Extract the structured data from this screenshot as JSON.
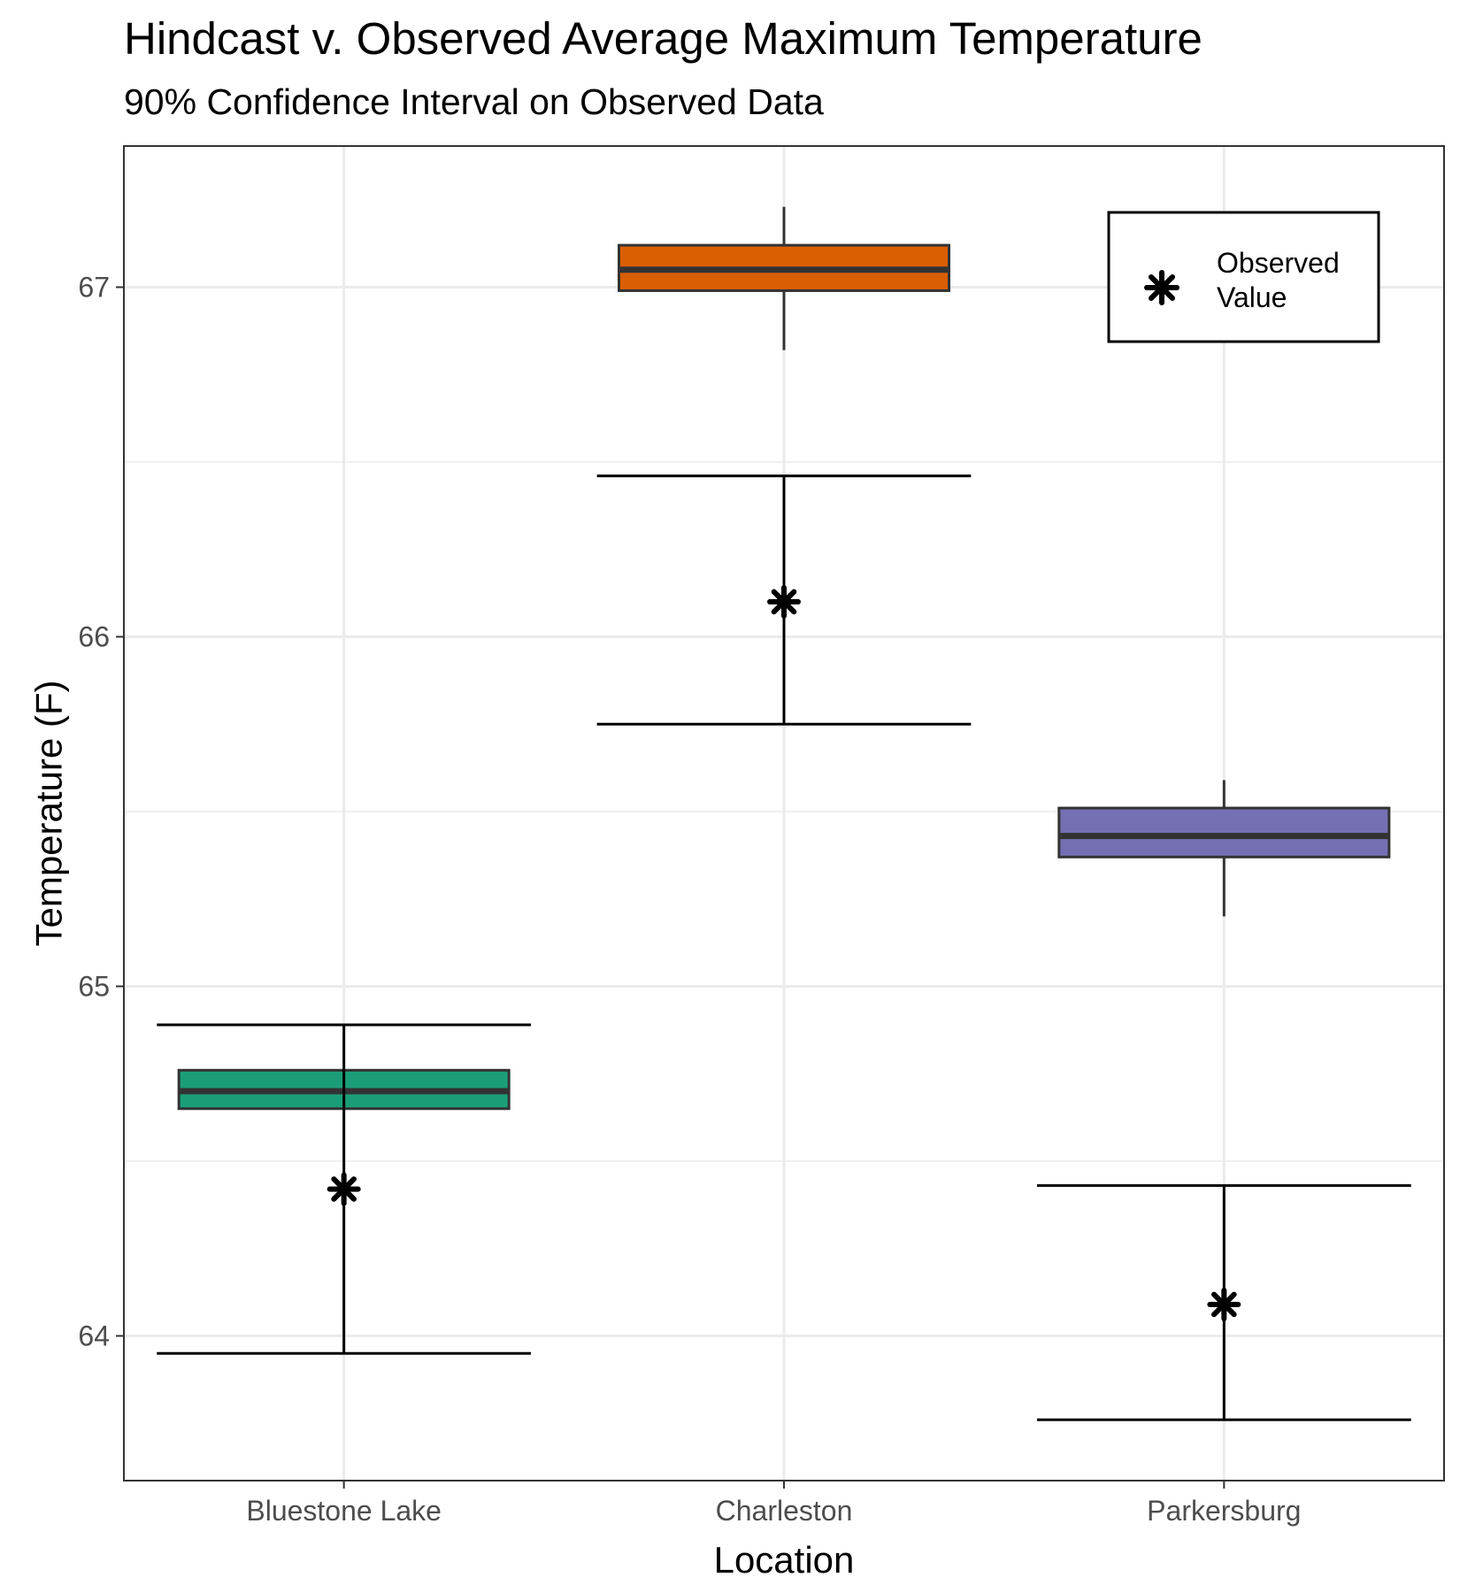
{
  "chart_data": {
    "type": "boxplot",
    "title": "Hindcast v. Observed Average Maximum Temperature",
    "subtitle": "90% Confidence Interval on Observed Data",
    "xlabel": "Location",
    "ylabel": "Temperature (F)",
    "categories": [
      "Bluestone Lake",
      "Charleston",
      "Parkersburg"
    ],
    "ylim": [
      63.6,
      67.4
    ],
    "yticks": [
      64,
      65,
      66,
      67
    ],
    "ytick_labels": [
      "64",
      "65",
      "66",
      "67"
    ],
    "grid": true,
    "box_colors": [
      "#1b9e77",
      "#d95f02",
      "#7570b3"
    ],
    "boxes": [
      {
        "category": "Bluestone Lake",
        "q1": 64.65,
        "median": 64.7,
        "q3": 64.76
      },
      {
        "category": "Charleston",
        "whisker_low": 66.82,
        "q1": 66.99,
        "median": 67.05,
        "q3": 67.12,
        "whisker_high": 67.23
      },
      {
        "category": "Parkersburg",
        "whisker_low": 65.2,
        "q1": 65.37,
        "median": 65.43,
        "q3": 65.51,
        "whisker_high": 65.59
      }
    ],
    "observed": [
      {
        "category": "Bluestone Lake",
        "value": 64.42,
        "ci_low": 63.95,
        "ci_high": 64.89
      },
      {
        "category": "Charleston",
        "value": 66.1,
        "ci_low": 65.75,
        "ci_high": 66.46
      },
      {
        "category": "Parkersburg",
        "value": 64.09,
        "ci_low": 63.76,
        "ci_high": 64.43
      }
    ],
    "legend": {
      "position": "top-right",
      "label": "Observed\nValue",
      "label_lines": [
        "Observed",
        "Value"
      ]
    }
  }
}
